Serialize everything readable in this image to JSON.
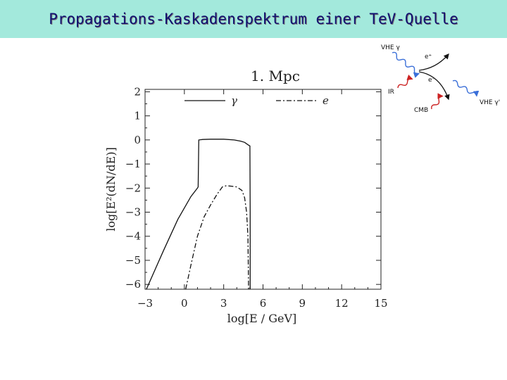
{
  "title": "Propagations-Kaskadenspektrum einer TeV-Quelle",
  "diagram": {
    "labels": [
      "VHE γ",
      "e⁺",
      "IR",
      "e⁻",
      "CMB",
      "VHE γ'"
    ],
    "colors": {
      "photon_line": "#3a6fd8",
      "background_photon": "#cc2222",
      "electron": "#111111"
    }
  },
  "chart_data": {
    "type": "line",
    "title": "1. Mpc",
    "xlabel": "log[E / GeV]",
    "ylabel": "log[E²(dN/dE)]",
    "xlim": [
      -3,
      15
    ],
    "ylim": [
      -6.2,
      2.1
    ],
    "xticks": [
      -3,
      0,
      3,
      6,
      9,
      12,
      15
    ],
    "xtick_labels": [
      "−3",
      "0",
      "3",
      "6",
      "9",
      "12",
      "15"
    ],
    "yticks": [
      -6,
      -5,
      -4,
      -3,
      -2,
      -1,
      0,
      1,
      2
    ],
    "ytick_labels": [
      "−6",
      "−5",
      "−4",
      "−3",
      "−2",
      "−1",
      "0",
      "1",
      "2"
    ],
    "grid": false,
    "legend": "top",
    "series": [
      {
        "name": "γ",
        "style": "solid",
        "x": [
          -2.9,
          -1.6,
          -0.5,
          0.5,
          1.0,
          1.05,
          1.1,
          1.4,
          2.0,
          3.0,
          3.8,
          4.3,
          4.6,
          4.85,
          5.0,
          5.02,
          5.02
        ],
        "y": [
          -6.2,
          -4.6,
          -3.3,
          -2.35,
          -2.0,
          -1.95,
          0.0,
          0.02,
          0.03,
          0.03,
          0.0,
          -0.05,
          -0.1,
          -0.2,
          -0.25,
          -3.0,
          -6.2
        ]
      },
      {
        "name": "e",
        "style": "dashdot",
        "x": [
          0.1,
          0.5,
          1.0,
          1.5,
          2.0,
          2.5,
          2.9,
          3.2,
          3.6,
          4.0,
          4.4,
          4.6,
          4.75,
          4.85,
          4.9
        ],
        "y": [
          -6.2,
          -5.2,
          -4.0,
          -3.2,
          -2.7,
          -2.25,
          -1.95,
          -1.9,
          -1.92,
          -1.95,
          -2.1,
          -2.4,
          -3.0,
          -4.0,
          -6.2
        ]
      }
    ]
  }
}
